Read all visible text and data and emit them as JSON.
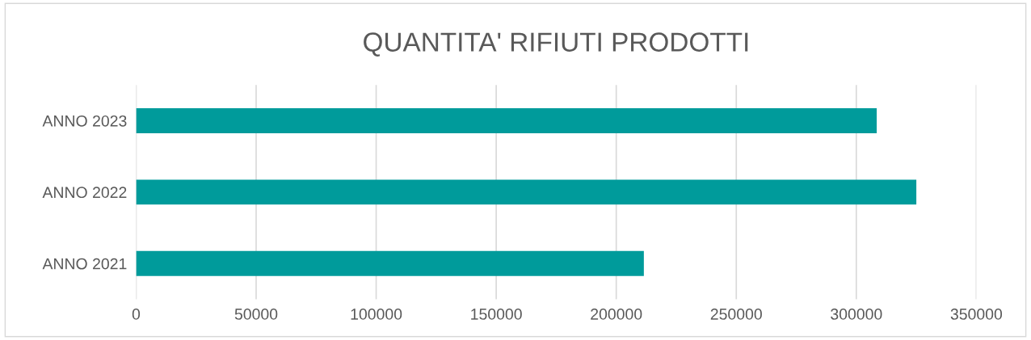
{
  "chart_data": {
    "type": "bar",
    "orientation": "horizontal",
    "title": "QUANTITA' RIFIUTI PRODOTTI",
    "categories": [
      "ANNO 2023",
      "ANNO 2022",
      "ANNO 2021"
    ],
    "values": [
      308500,
      325000,
      211500
    ],
    "color": "#009b9b",
    "xlim": [
      0,
      350000
    ],
    "xticks": [
      0,
      50000,
      100000,
      150000,
      200000,
      250000,
      300000,
      350000
    ],
    "grid": "x",
    "legend": false
  }
}
